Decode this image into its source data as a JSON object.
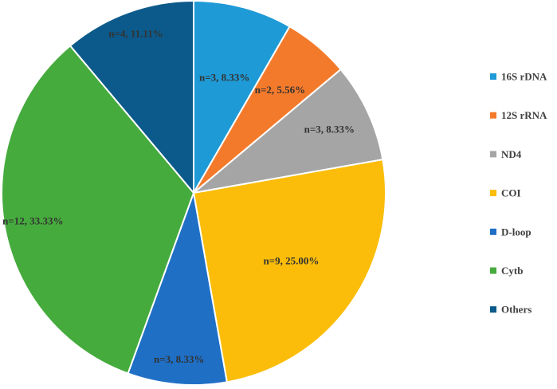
{
  "chart_data": {
    "type": "pie",
    "title": "",
    "start_angle_deg": 90,
    "direction": "clockwise",
    "legend_position": "right",
    "slices": [
      {
        "name": "16S rDNA",
        "n": 3,
        "label": "n=3, 8.33%",
        "color": "#1e9ad6"
      },
      {
        "name": "12S rRNA",
        "n": 2,
        "label": "n=2, 5.56%",
        "color": "#f47a2b"
      },
      {
        "name": "ND4",
        "n": 3,
        "label": "n=3, 8.33%",
        "color": "#a5a5a5"
      },
      {
        "name": "COI",
        "n": 9,
        "label": "n=9, 25.00%",
        "color": "#fbbd09"
      },
      {
        "name": "D-loop",
        "n": 3,
        "label": "n=3, 8.33%",
        "color": "#1f6fc5"
      },
      {
        "name": "Cytb",
        "n": 12,
        "label": "n=12, 33.33%",
        "color": "#45ab3d"
      },
      {
        "name": "Others",
        "n": 4,
        "label": "n=4, 11.11%",
        "color": "#0c5a8b"
      }
    ]
  }
}
